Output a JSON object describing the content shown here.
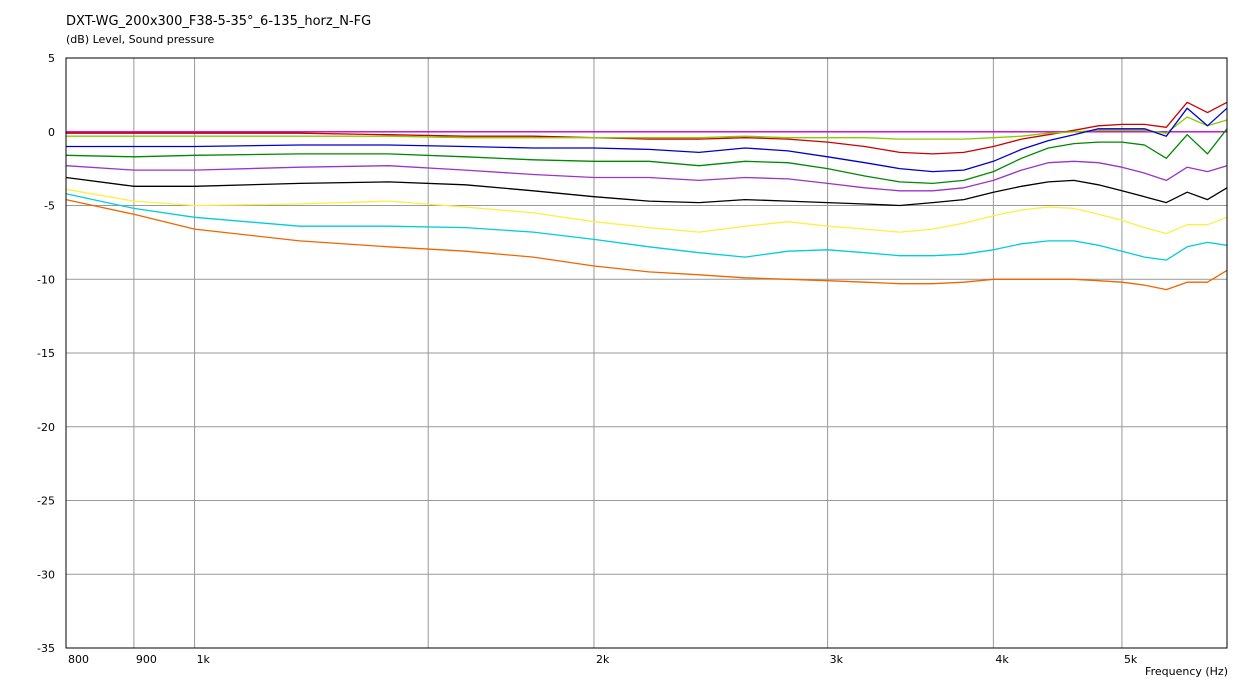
{
  "chart_data": {
    "type": "line",
    "title": "DXT-WG_200x300_F38-5-35°_6-135_horz_N-FG",
    "ylabel": "(dB)  Level, Sound pressure",
    "xlabel": "Frequency  (Hz)",
    "x_scale": "log",
    "xlim": [
      800,
      6000
    ],
    "ylim": [
      -35,
      5
    ],
    "grid": true,
    "legend": "none",
    "x_ticks": [
      {
        "value": 800,
        "label": "800"
      },
      {
        "value": 900,
        "label": "900"
      },
      {
        "value": 1000,
        "label": "1k"
      },
      {
        "value": 2000,
        "label": "2k"
      },
      {
        "value": 3000,
        "label": "3k"
      },
      {
        "value": 4000,
        "label": "4k"
      },
      {
        "value": 5000,
        "label": "5k"
      }
    ],
    "x_minor_gridlines": [
      1500,
      6000
    ],
    "y_ticks": [
      5,
      0,
      -5,
      -10,
      -15,
      -20,
      -25,
      -30,
      -35
    ],
    "x": [
      800,
      900,
      1000,
      1200,
      1400,
      1600,
      1800,
      2000,
      2200,
      2400,
      2600,
      2800,
      3000,
      3200,
      3400,
      3600,
      3800,
      4000,
      4200,
      4400,
      4600,
      4800,
      5000,
      5200,
      5400,
      5600,
      5800,
      6000
    ],
    "series": [
      {
        "color": "#cc00cc",
        "values": [
          0,
          0,
          0,
          0,
          0,
          0,
          0,
          0,
          0,
          0,
          0,
          0,
          0,
          0,
          0,
          0,
          0,
          0,
          0,
          0,
          0,
          0,
          0,
          0,
          0,
          0,
          0,
          0
        ]
      },
      {
        "color": "#cc0000",
        "values": [
          -0.1,
          -0.1,
          -0.1,
          -0.1,
          -0.2,
          -0.3,
          -0.3,
          -0.4,
          -0.5,
          -0.5,
          -0.4,
          -0.5,
          -0.7,
          -1.0,
          -1.4,
          -1.5,
          -1.4,
          -1.0,
          -0.5,
          -0.2,
          0.1,
          0.4,
          0.5,
          0.5,
          0.3,
          2.0,
          1.3,
          2.0
        ]
      },
      {
        "color": "#88cc00",
        "values": [
          -0.3,
          -0.3,
          -0.3,
          -0.3,
          -0.3,
          -0.4,
          -0.4,
          -0.4,
          -0.4,
          -0.4,
          -0.3,
          -0.4,
          -0.4,
          -0.4,
          -0.5,
          -0.5,
          -0.5,
          -0.4,
          -0.3,
          -0.1,
          0.0,
          0.1,
          0.1,
          0.1,
          -0.1,
          1.0,
          0.4,
          0.8
        ]
      },
      {
        "color": "#0000cc",
        "values": [
          -1.0,
          -1.0,
          -1.0,
          -0.9,
          -0.9,
          -1.0,
          -1.1,
          -1.1,
          -1.2,
          -1.4,
          -1.1,
          -1.3,
          -1.7,
          -2.1,
          -2.5,
          -2.7,
          -2.6,
          -2.0,
          -1.2,
          -0.6,
          -0.2,
          0.2,
          0.2,
          0.2,
          -0.3,
          1.6,
          0.4,
          1.6
        ]
      },
      {
        "color": "#008800",
        "values": [
          -1.6,
          -1.7,
          -1.6,
          -1.5,
          -1.5,
          -1.7,
          -1.9,
          -2.0,
          -2.0,
          -2.3,
          -2.0,
          -2.1,
          -2.5,
          -3.0,
          -3.4,
          -3.5,
          -3.3,
          -2.7,
          -1.8,
          -1.1,
          -0.8,
          -0.7,
          -0.7,
          -0.9,
          -1.8,
          -0.2,
          -1.5,
          0.2
        ]
      },
      {
        "color": "#9933cc",
        "values": [
          -2.3,
          -2.6,
          -2.6,
          -2.4,
          -2.3,
          -2.6,
          -2.9,
          -3.1,
          -3.1,
          -3.3,
          -3.1,
          -3.2,
          -3.5,
          -3.8,
          -4.0,
          -4.0,
          -3.8,
          -3.3,
          -2.6,
          -2.1,
          -2.0,
          -2.1,
          -2.4,
          -2.8,
          -3.3,
          -2.4,
          -2.7,
          -2.3
        ]
      },
      {
        "color": "#000000",
        "values": [
          -3.1,
          -3.7,
          -3.7,
          -3.5,
          -3.4,
          -3.6,
          -4.0,
          -4.4,
          -4.7,
          -4.8,
          -4.6,
          -4.7,
          -4.8,
          -4.9,
          -5.0,
          -4.8,
          -4.6,
          -4.1,
          -3.7,
          -3.4,
          -3.3,
          -3.6,
          -4.0,
          -4.4,
          -4.8,
          -4.1,
          -4.6,
          -3.8
        ]
      },
      {
        "color": "#ffee44",
        "values": [
          -3.9,
          -4.7,
          -5.0,
          -4.9,
          -4.7,
          -5.1,
          -5.5,
          -6.1,
          -6.5,
          -6.8,
          -6.4,
          -6.1,
          -6.4,
          -6.6,
          -6.8,
          -6.6,
          -6.2,
          -5.7,
          -5.3,
          -5.1,
          -5.2,
          -5.6,
          -6.0,
          -6.5,
          -6.9,
          -6.3,
          -6.3,
          -5.8
        ]
      },
      {
        "color": "#00ccdd",
        "values": [
          -4.2,
          -5.2,
          -5.8,
          -6.4,
          -6.4,
          -6.5,
          -6.8,
          -7.3,
          -7.8,
          -8.2,
          -8.5,
          -8.1,
          -8.0,
          -8.2,
          -8.4,
          -8.4,
          -8.3,
          -8.0,
          -7.6,
          -7.4,
          -7.4,
          -7.7,
          -8.1,
          -8.5,
          -8.7,
          -7.8,
          -7.5,
          -7.7
        ]
      },
      {
        "color": "#ee6600",
        "values": [
          -4.6,
          -5.6,
          -6.6,
          -7.4,
          -7.8,
          -8.1,
          -8.5,
          -9.1,
          -9.5,
          -9.7,
          -9.9,
          -10.0,
          -10.1,
          -10.2,
          -10.3,
          -10.3,
          -10.2,
          -10.0,
          -10.0,
          -10.0,
          -10.0,
          -10.1,
          -10.2,
          -10.4,
          -10.7,
          -10.2,
          -10.2,
          -9.4
        ]
      }
    ]
  }
}
